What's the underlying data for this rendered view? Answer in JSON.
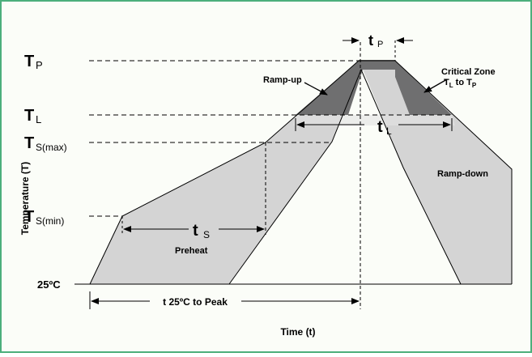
{
  "colors": {
    "border": "#4caf7c",
    "background": "#fbfdf8",
    "band_fill": "#d4d4d4",
    "zone_fill": "#6f6f70",
    "line": "#000000"
  },
  "labels": {
    "tp_main": "T",
    "tp_sub": "P",
    "tl_main": "T",
    "tl_sub": "L",
    "tsmax_main": "T",
    "tsmax_sub": "S(max)",
    "tsmin_main": "T",
    "tsmin_sub": "S(min)",
    "t25": "25ºC",
    "y_axis": "Temperature (T)",
    "x_axis": "Time (t)",
    "ramp_up": "Ramp-up",
    "ramp_down": "Ramp-down",
    "critical_line1": "Critical Zone",
    "critical_t1": "T",
    "critical_t1_sub": "L",
    "critical_to": " to ",
    "critical_t2": "T",
    "critical_t2_sub": "P",
    "ts_main": "t",
    "ts_sub": "S",
    "preheat": "Preheat",
    "tl_dur_main": "t",
    "tl_dur_sub": "L",
    "tp_dur_main": "t",
    "tp_dur_sub": "P",
    "t25_to_peak": "t 25ºC to Peak"
  }
}
